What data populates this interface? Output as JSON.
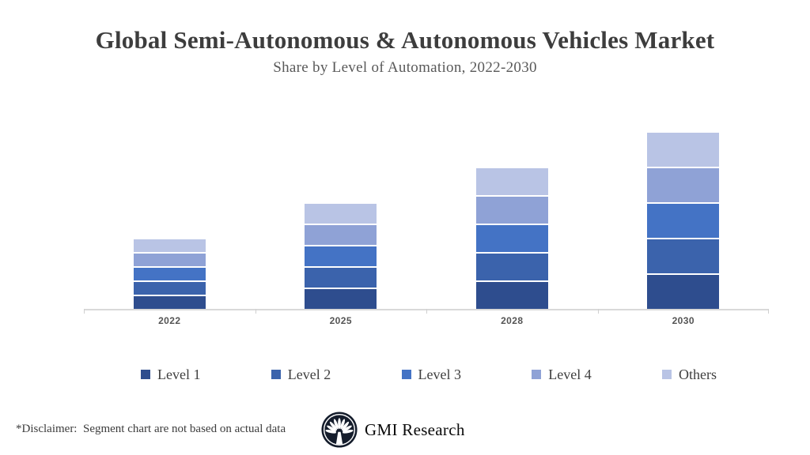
{
  "header": {
    "title": "Global Semi-Autonomous & Autonomous Vehicles Market",
    "subtitle": "Share by Level of Automation, 2022-2030"
  },
  "chart_data": {
    "type": "bar",
    "stacked": true,
    "title": "Global Semi-Autonomous & Autonomous Vehicles Market",
    "subtitle": "Share by Level of Automation, 2022-2030",
    "categories": [
      "2022",
      "2025",
      "2028",
      "2030"
    ],
    "series": [
      {
        "name": "Level 1",
        "color": "#2e4d8e",
        "values": [
          3.6,
          5.4,
          7.2,
          9.0
        ]
      },
      {
        "name": "Level 2",
        "color": "#3b63ac",
        "values": [
          3.6,
          5.4,
          7.2,
          9.0
        ]
      },
      {
        "name": "Level 3",
        "color": "#4473c5",
        "values": [
          3.6,
          5.4,
          7.2,
          9.0
        ]
      },
      {
        "name": "Level 4",
        "color": "#8fa2d6",
        "values": [
          3.6,
          5.4,
          7.2,
          9.0
        ]
      },
      {
        "name": "Others",
        "color": "#b9c4e5",
        "values": [
          3.6,
          5.4,
          7.2,
          9.0
        ]
      }
    ],
    "xlabel": "",
    "ylabel": "",
    "ylim": [
      0,
      50
    ],
    "grid": false,
    "y_axis_visible": false,
    "legend_position": "bottom"
  },
  "footer": {
    "disclaimer": "*Disclaimer:  Segment chart are not based on actual data",
    "brand_name": "GMI Research",
    "logo_icon": "fan-palm-icon"
  }
}
